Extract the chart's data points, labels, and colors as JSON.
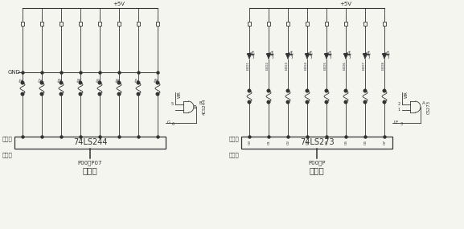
{
  "bg_color": "#f5f5f0",
  "line_color": "#333333",
  "left_chip": "74LS244",
  "right_chip": "74LS273",
  "left_vcc": "+5V",
  "right_vcc": "+5V",
  "left_gnd": "GND",
  "left_gate_label": "4CS244",
  "right_gate_label": "CS273",
  "left_wr": "WR",
  "right_wr": "WR",
  "left_g_pin": "G",
  "left_g_num": "6",
  "right_le_pin": "LE",
  "right_le_num": "3",
  "left_input": "输入口",
  "left_output": "输出口",
  "right_output": "输出口",
  "right_input": "输入口",
  "left_mcu": "P00－P07",
  "left_mcu2": "单片朼",
  "right_mcu": "P00－P",
  "right_mcu2": "单片朼",
  "left_switches": [
    "S1",
    "S2",
    "S3",
    "S4",
    "S5",
    "S6",
    "S7",
    "S8"
  ],
  "right_leds": [
    "LED1",
    "LED2",
    "LED3",
    "LED4",
    "LED5",
    "LED6",
    "LED7",
    "LED8"
  ],
  "right_pins": [
    "O0",
    "O1",
    "O2",
    "O3",
    "O4",
    "O5",
    "O6",
    "O7"
  ],
  "left_wr_num": "5",
  "right_wr_num": "2",
  "right_cs_num": "1",
  "right_a_label": "A",
  "left_b_label": "B"
}
